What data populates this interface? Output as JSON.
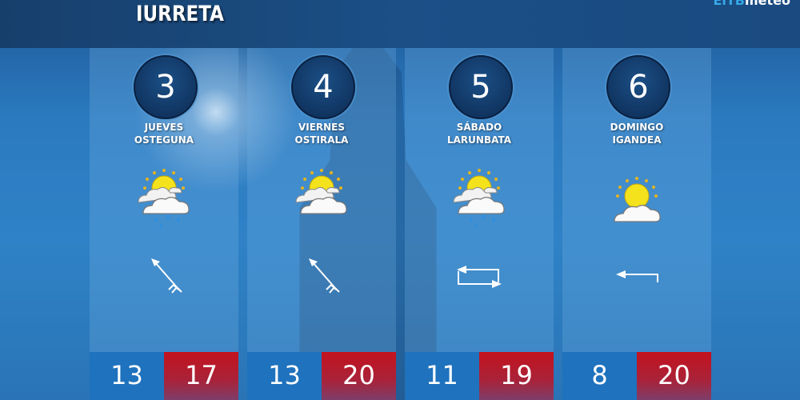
{
  "header": {
    "location": "IURRETA",
    "logo": "EiTBmeteo"
  },
  "colors": {
    "min_temp": "#1f72bd",
    "max_temp": "#c4121d",
    "badge": "#0c2a52"
  },
  "days": [
    {
      "number": "3",
      "name_es": "JUEVES",
      "name_eu": "OSTEGUNA",
      "icon": "sun-cloud-rain-icon",
      "wind": "wind-northwest-icon",
      "min": "13",
      "max": "17"
    },
    {
      "number": "4",
      "name_es": "VIERNES",
      "name_eu": "OSTIRALA",
      "icon": "sun-cloud-icon",
      "wind": "wind-northwest-icon",
      "min": "13",
      "max": "20"
    },
    {
      "number": "5",
      "name_es": "SÁBADO",
      "name_eu": "LARUNBATA",
      "icon": "sun-cloud-rain-icon",
      "wind": "wind-variable-icon",
      "min": "11",
      "max": "19"
    },
    {
      "number": "6",
      "name_es": "DOMINGO",
      "name_eu": "IGANDEA",
      "icon": "sun-cloud-icon",
      "wind": "wind-west-icon",
      "min": "8",
      "max": "20"
    }
  ]
}
